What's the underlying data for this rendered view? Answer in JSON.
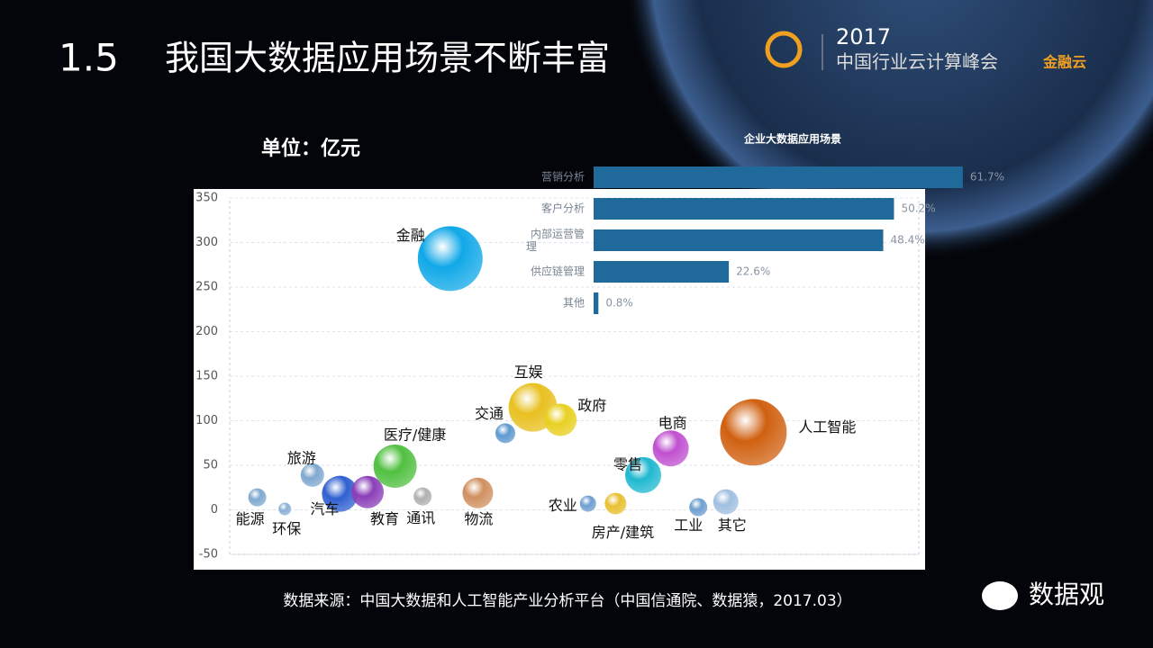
{
  "slide": {
    "number": "1.5",
    "title": "我国大数据应用场景不断丰富",
    "unit": "单位：亿元",
    "source": "数据来源：中国大数据和人工智能产业分析平台（中国信通院、数据猿，2017.03）",
    "logo": {
      "year": "2017",
      "event": "中国行业云计算峰会",
      "brand": "金融云"
    },
    "watermark": "数据观"
  },
  "chart_data": [
    {
      "type": "bubble",
      "labels": [
        "能源",
        "环保",
        "旅游",
        "汽车",
        "教育",
        "医疗/健康",
        "通讯",
        "物流",
        "交通",
        "金融",
        "互娱",
        "政府",
        "农业",
        "房产/建筑",
        "零售",
        "电商",
        "工业",
        "其它",
        "人工智能"
      ],
      "x": [
        4,
        8,
        12,
        16,
        20,
        24,
        28,
        36,
        40,
        32,
        44,
        48,
        52,
        56,
        60,
        64,
        68,
        72,
        76
      ],
      "values": [
        14,
        1,
        39,
        18,
        20,
        49,
        15,
        19,
        86,
        282,
        115,
        101,
        7,
        7,
        39,
        69,
        3,
        9,
        87
      ],
      "sizes": [
        10,
        7,
        13,
        20,
        18,
        24,
        10,
        17,
        11,
        36,
        27,
        18,
        9,
        12,
        20,
        20,
        10,
        14,
        37
      ],
      "colors": [
        "#7fa9d0",
        "#8ab0d5",
        "#7fa8d0",
        "#3060d0",
        "#8a3fb8",
        "#50c040",
        "#b0b0b0",
        "#d09060",
        "#5d9ad0",
        "#10a8e8",
        "#e8c020",
        "#e8d020",
        "#6f9fd0",
        "#e8c030",
        "#20b8d0",
        "#c050d0",
        "#70a0d0",
        "#a0c0e0",
        "#d06010"
      ],
      "xlim": [
        0,
        100
      ],
      "ylim": [
        -50,
        350
      ],
      "yticks": [
        -50,
        0,
        50,
        100,
        150,
        200,
        250,
        300,
        350
      ],
      "grid": true
    },
    {
      "type": "bar",
      "orientation": "horizontal",
      "title": "企业大数据应用场景",
      "categories": [
        "营销分析",
        "客户分析",
        "内部运营管理",
        "供应链管理",
        "其他"
      ],
      "values": [
        61.7,
        50.2,
        48.4,
        22.6,
        0.8
      ],
      "value_labels": [
        "61.7%",
        "50.2%",
        "48.4%",
        "22.6%",
        "0.8%"
      ],
      "color": "#1f6a9a",
      "xlim": [
        0,
        70
      ]
    }
  ]
}
